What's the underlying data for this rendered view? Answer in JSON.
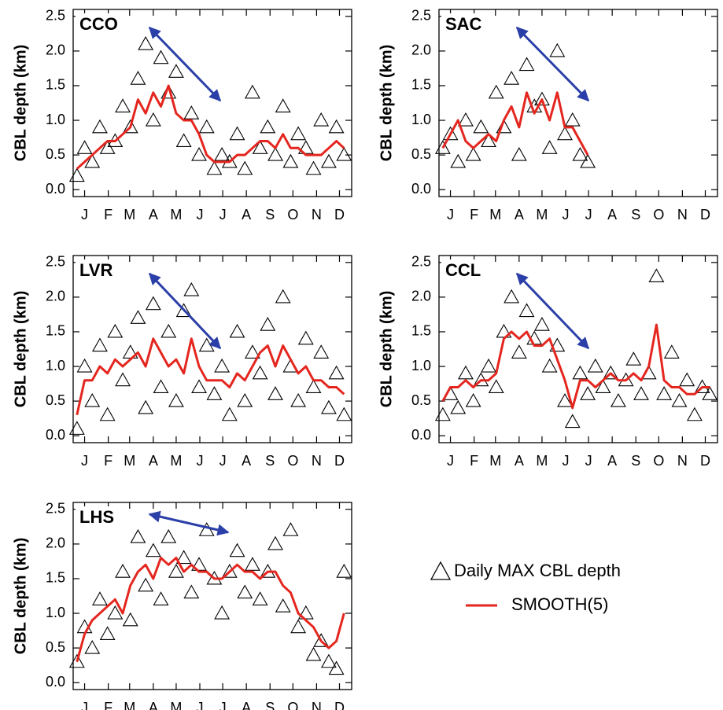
{
  "chart_data": [
    {
      "type": "line",
      "title": "CCO",
      "ylabel": "CBL depth (km)",
      "x": [
        5,
        15,
        25,
        35,
        45,
        55,
        65,
        75,
        85,
        95,
        105,
        115,
        125,
        135,
        145,
        155,
        165,
        175,
        185,
        195,
        205,
        215,
        225,
        235,
        245,
        255,
        265,
        275,
        285,
        295,
        305,
        315,
        325,
        335,
        345,
        355
      ],
      "xlim": [
        0,
        365
      ],
      "ylim": [
        -0.1,
        2.6
      ],
      "yticks": [
        {
          "value": 0,
          "label": "0.0"
        },
        0.5,
        {
          "value": 1,
          "label": "1.0"
        },
        1.5,
        {
          "value": 2,
          "label": "2.0"
        },
        2.5
      ],
      "xticks": [
        {
          "value": 15,
          "label": "J"
        },
        {
          "value": 46,
          "label": "F"
        },
        {
          "value": 74,
          "label": "M"
        },
        {
          "value": 105,
          "label": "A"
        },
        {
          "value": 135,
          "label": "M"
        },
        {
          "value": 166,
          "label": "J"
        },
        {
          "value": 196,
          "label": "J"
        },
        {
          "value": 227,
          "label": "A"
        },
        {
          "value": 258,
          "label": "S"
        },
        {
          "value": 288,
          "label": "O"
        },
        {
          "value": 319,
          "label": "N"
        },
        {
          "value": 349,
          "label": "D"
        }
      ],
      "series": [
        {
          "name": "Daily MAX CBL depth",
          "marker": "triangle",
          "color": "#000000",
          "values": [
            0.2,
            0.6,
            0.4,
            0.9,
            0.6,
            0.7,
            1.2,
            0.9,
            1.6,
            2.1,
            1.0,
            1.9,
            1.4,
            1.7,
            0.7,
            1.1,
            0.5,
            0.9,
            0.3,
            0.5,
            0.4,
            0.8,
            0.3,
            1.4,
            0.6,
            0.9,
            0.5,
            1.2,
            0.4,
            0.8,
            0.6,
            0.3,
            1.0,
            0.4,
            0.9,
            0.5
          ]
        },
        {
          "name": "SMOOTH(5)",
          "marker": "line",
          "color": "#e4261f",
          "values": [
            0.3,
            0.4,
            0.5,
            0.6,
            0.7,
            0.7,
            0.8,
            0.9,
            1.3,
            1.1,
            1.4,
            1.2,
            1.5,
            1.1,
            1.0,
            1.0,
            0.8,
            0.5,
            0.4,
            0.4,
            0.4,
            0.5,
            0.5,
            0.6,
            0.7,
            0.7,
            0.6,
            0.8,
            0.6,
            0.6,
            0.5,
            0.5,
            0.5,
            0.6,
            0.7,
            0.6
          ]
        }
      ]
    },
    {
      "type": "line",
      "title": "SAC",
      "ylabel": "CBL depth (km)",
      "x": [
        5,
        15,
        25,
        35,
        45,
        55,
        65,
        75,
        85,
        95,
        105,
        115,
        125,
        135,
        145,
        155,
        165,
        175,
        185,
        195,
        205,
        215,
        225,
        235,
        245,
        255,
        265,
        275,
        285,
        295,
        305,
        315,
        325,
        335,
        345,
        355
      ],
      "xlim": [
        0,
        365
      ],
      "ylim": [
        -0.1,
        2.6
      ],
      "yticks": [
        {
          "value": 0,
          "label": "0.0"
        },
        0.5,
        {
          "value": 1,
          "label": "1.0"
        },
        1.5,
        {
          "value": 2,
          "label": "2.0"
        },
        2.5
      ],
      "xticks": [
        {
          "value": 15,
          "label": "J"
        },
        {
          "value": 46,
          "label": "F"
        },
        {
          "value": 74,
          "label": "M"
        },
        {
          "value": 105,
          "label": "A"
        },
        {
          "value": 135,
          "label": "M"
        },
        {
          "value": 166,
          "label": "J"
        },
        {
          "value": 196,
          "label": "J"
        },
        {
          "value": 227,
          "label": "A"
        },
        {
          "value": 258,
          "label": "S"
        },
        {
          "value": 288,
          "label": "O"
        },
        {
          "value": 319,
          "label": "N"
        },
        {
          "value": 349,
          "label": "D"
        }
      ],
      "series": [
        {
          "name": "Daily MAX CBL depth",
          "marker": "triangle",
          "color": "#000000",
          "values": [
            0.6,
            0.8,
            0.4,
            1.0,
            0.5,
            0.9,
            0.7,
            1.4,
            0.9,
            1.6,
            0.5,
            1.8,
            1.2,
            1.3,
            0.6,
            2.0,
            0.8,
            1.0,
            0.5,
            0.4,
            null,
            null,
            null,
            null,
            null,
            null,
            null,
            null,
            null,
            null,
            null,
            null,
            null,
            null,
            null,
            null
          ]
        },
        {
          "name": "SMOOTH(5)",
          "marker": "line",
          "color": "#e4261f",
          "values": [
            0.6,
            0.8,
            1.0,
            0.7,
            0.6,
            0.7,
            0.8,
            0.7,
            1.0,
            1.2,
            0.9,
            1.4,
            1.1,
            1.3,
            1.0,
            1.4,
            0.9,
            0.9,
            0.7,
            0.5,
            null,
            null,
            null,
            null,
            null,
            null,
            null,
            null,
            null,
            null,
            null,
            null,
            null,
            null,
            null,
            null
          ]
        }
      ]
    },
    {
      "type": "line",
      "title": "LVR",
      "ylabel": "CBL depth (km)",
      "x": [
        5,
        15,
        25,
        35,
        45,
        55,
        65,
        75,
        85,
        95,
        105,
        115,
        125,
        135,
        145,
        155,
        165,
        175,
        185,
        195,
        205,
        215,
        225,
        235,
        245,
        255,
        265,
        275,
        285,
        295,
        305,
        315,
        325,
        335,
        345,
        355
      ],
      "xlim": [
        0,
        365
      ],
      "ylim": [
        -0.1,
        2.6
      ],
      "yticks": [
        {
          "value": 0,
          "label": "0.0"
        },
        0.5,
        {
          "value": 1,
          "label": "1.0"
        },
        1.5,
        {
          "value": 2,
          "label": "2.0"
        },
        2.5
      ],
      "xticks": [
        {
          "value": 15,
          "label": "J"
        },
        {
          "value": 46,
          "label": "F"
        },
        {
          "value": 74,
          "label": "M"
        },
        {
          "value": 105,
          "label": "A"
        },
        {
          "value": 135,
          "label": "M"
        },
        {
          "value": 166,
          "label": "J"
        },
        {
          "value": 196,
          "label": "J"
        },
        {
          "value": 227,
          "label": "A"
        },
        {
          "value": 258,
          "label": "S"
        },
        {
          "value": 288,
          "label": "O"
        },
        {
          "value": 319,
          "label": "N"
        },
        {
          "value": 349,
          "label": "D"
        }
      ],
      "series": [
        {
          "name": "Daily MAX CBL depth",
          "marker": "triangle",
          "color": "#000000",
          "values": [
            0.1,
            1.0,
            0.5,
            1.3,
            0.3,
            1.5,
            0.8,
            1.2,
            1.7,
            0.4,
            1.9,
            0.7,
            1.5,
            0.5,
            1.8,
            2.1,
            0.7,
            1.3,
            0.6,
            1.0,
            0.3,
            1.5,
            0.5,
            1.2,
            0.9,
            1.6,
            0.6,
            2.0,
            1.0,
            0.5,
            1.4,
            0.7,
            1.2,
            0.4,
            0.9,
            0.3
          ]
        },
        {
          "name": "SMOOTH(5)",
          "marker": "line",
          "color": "#e4261f",
          "values": [
            0.3,
            0.8,
            0.8,
            1.0,
            0.9,
            1.1,
            1.0,
            1.1,
            1.2,
            1.0,
            1.4,
            1.2,
            1.0,
            1.1,
            0.9,
            1.4,
            1.0,
            0.8,
            0.8,
            0.8,
            0.7,
            0.9,
            0.8,
            1.0,
            1.2,
            1.3,
            1.0,
            1.3,
            1.1,
            0.9,
            1.0,
            0.8,
            0.8,
            0.7,
            0.7,
            0.6
          ]
        }
      ]
    },
    {
      "type": "line",
      "title": "CCL",
      "ylabel": "CBL depth (km)",
      "x": [
        5,
        15,
        25,
        35,
        45,
        55,
        65,
        75,
        85,
        95,
        105,
        115,
        125,
        135,
        145,
        155,
        165,
        175,
        185,
        195,
        205,
        215,
        225,
        235,
        245,
        255,
        265,
        275,
        285,
        295,
        305,
        315,
        325,
        335,
        345,
        355
      ],
      "xlim": [
        0,
        365
      ],
      "ylim": [
        -0.1,
        2.6
      ],
      "yticks": [
        {
          "value": 0,
          "label": "0.0"
        },
        0.5,
        {
          "value": 1,
          "label": "1.0"
        },
        1.5,
        {
          "value": 2,
          "label": "2.0"
        },
        2.5
      ],
      "xticks": [
        {
          "value": 15,
          "label": "J"
        },
        {
          "value": 46,
          "label": "F"
        },
        {
          "value": 74,
          "label": "M"
        },
        {
          "value": 105,
          "label": "A"
        },
        {
          "value": 135,
          "label": "M"
        },
        {
          "value": 166,
          "label": "J"
        },
        {
          "value": 196,
          "label": "J"
        },
        {
          "value": 227,
          "label": "A"
        },
        {
          "value": 258,
          "label": "S"
        },
        {
          "value": 288,
          "label": "O"
        },
        {
          "value": 319,
          "label": "N"
        },
        {
          "value": 349,
          "label": "D"
        }
      ],
      "series": [
        {
          "name": "Daily MAX CBL depth",
          "marker": "triangle",
          "color": "#000000",
          "values": [
            0.3,
            0.6,
            0.4,
            0.9,
            0.5,
            0.8,
            1.0,
            0.7,
            1.5,
            2.0,
            1.2,
            1.8,
            1.4,
            1.6,
            1.0,
            1.3,
            0.5,
            0.2,
            0.9,
            0.6,
            1.0,
            0.7,
            0.9,
            0.5,
            0.8,
            1.1,
            0.6,
            0.9,
            2.3,
            0.6,
            1.2,
            0.5,
            0.8,
            0.3,
            0.7,
            0.6
          ]
        },
        {
          "name": "SMOOTH(5)",
          "marker": "line",
          "color": "#e4261f",
          "values": [
            0.5,
            0.7,
            0.7,
            0.8,
            0.7,
            0.8,
            0.8,
            0.9,
            1.4,
            1.5,
            1.4,
            1.5,
            1.3,
            1.3,
            1.4,
            1.1,
            0.8,
            0.4,
            0.8,
            0.8,
            0.7,
            0.8,
            0.9,
            0.8,
            0.8,
            0.9,
            0.8,
            1.0,
            1.6,
            0.8,
            0.7,
            0.7,
            0.6,
            0.6,
            0.7,
            0.7
          ]
        }
      ]
    },
    {
      "type": "line",
      "title": "LHS",
      "ylabel": "CBL depth (km)",
      "legend": true,
      "x": [
        5,
        15,
        25,
        35,
        45,
        55,
        65,
        75,
        85,
        95,
        105,
        115,
        125,
        135,
        145,
        155,
        165,
        175,
        185,
        195,
        205,
        215,
        225,
        235,
        245,
        255,
        265,
        275,
        285,
        295,
        305,
        315,
        325,
        335,
        345,
        355
      ],
      "xlim": [
        0,
        365
      ],
      "ylim": [
        -0.1,
        2.6
      ],
      "yticks": [
        {
          "value": 0,
          "label": "0.0"
        },
        0.5,
        {
          "value": 1,
          "label": "1.0"
        },
        1.5,
        {
          "value": 2,
          "label": "2.0"
        },
        2.5
      ],
      "xticks": [
        {
          "value": 15,
          "label": "J"
        },
        {
          "value": 46,
          "label": "F"
        },
        {
          "value": 74,
          "label": "M"
        },
        {
          "value": 105,
          "label": "A"
        },
        {
          "value": 135,
          "label": "M"
        },
        {
          "value": 166,
          "label": "J"
        },
        {
          "value": 196,
          "label": "J"
        },
        {
          "value": 227,
          "label": "A"
        },
        {
          "value": 258,
          "label": "S"
        },
        {
          "value": 288,
          "label": "O"
        },
        {
          "value": 319,
          "label": "N"
        },
        {
          "value": 349,
          "label": "D"
        }
      ],
      "series": [
        {
          "name": "Daily MAX CBL depth",
          "marker": "triangle",
          "color": "#000000",
          "values": [
            0.3,
            0.8,
            0.5,
            1.2,
            0.7,
            1.0,
            1.6,
            0.9,
            2.1,
            1.4,
            1.9,
            1.2,
            2.1,
            1.6,
            1.8,
            1.3,
            1.7,
            2.2,
            1.5,
            1.0,
            1.6,
            1.9,
            1.3,
            1.7,
            1.2,
            1.6,
            2.0,
            1.1,
            2.2,
            0.8,
            1.0,
            0.4,
            0.6,
            0.3,
            0.2,
            1.6
          ]
        },
        {
          "name": "SMOOTH(5)",
          "marker": "line",
          "color": "#e4261f",
          "values": [
            0.3,
            0.7,
            0.9,
            1.0,
            1.1,
            1.2,
            1.0,
            1.4,
            1.6,
            1.7,
            1.5,
            1.8,
            1.7,
            1.8,
            1.6,
            1.7,
            1.6,
            1.6,
            1.5,
            1.5,
            1.6,
            1.7,
            1.6,
            1.6,
            1.5,
            1.6,
            1.6,
            1.4,
            1.3,
            1.0,
            0.9,
            0.8,
            0.6,
            0.5,
            0.6,
            1.0
          ]
        }
      ]
    }
  ]
}
